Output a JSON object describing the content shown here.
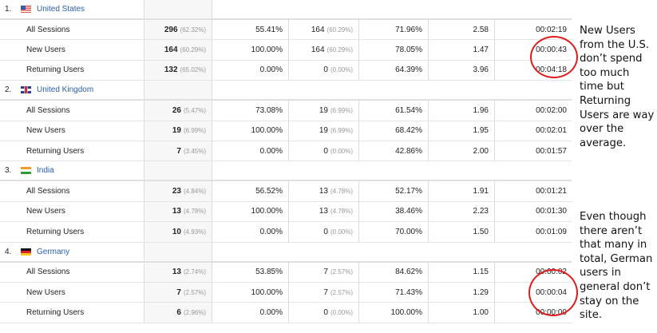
{
  "groups": [
    {
      "rank": "1.",
      "flag": "flag-us",
      "country": "United States",
      "rows": [
        {
          "label": "All Sessions",
          "sessions": "296",
          "sessions_pct": "(62.32%)",
          "new_sessions_pct": "55.41%",
          "new_users": "164",
          "new_users_pct": "(60.29%)",
          "bounce_rate": "71.96%",
          "pages_per_session": "2.58",
          "avg_duration": "00:02:19"
        },
        {
          "label": "New Users",
          "sessions": "164",
          "sessions_pct": "(60.29%)",
          "new_sessions_pct": "100.00%",
          "new_users": "164",
          "new_users_pct": "(60.29%)",
          "bounce_rate": "78.05%",
          "pages_per_session": "1.47",
          "avg_duration": "00:00:43"
        },
        {
          "label": "Returning Users",
          "sessions": "132",
          "sessions_pct": "(65.02%)",
          "new_sessions_pct": "0.00%",
          "new_users": "0",
          "new_users_pct": "(0.00%)",
          "bounce_rate": "64.39%",
          "pages_per_session": "3.96",
          "avg_duration": "00:04:18"
        }
      ]
    },
    {
      "rank": "2.",
      "flag": "flag-uk",
      "country": "United Kingdom",
      "rows": [
        {
          "label": "All Sessions",
          "sessions": "26",
          "sessions_pct": "(5.47%)",
          "new_sessions_pct": "73.08%",
          "new_users": "19",
          "new_users_pct": "(6.99%)",
          "bounce_rate": "61.54%",
          "pages_per_session": "1.96",
          "avg_duration": "00:02:00"
        },
        {
          "label": "New Users",
          "sessions": "19",
          "sessions_pct": "(6.99%)",
          "new_sessions_pct": "100.00%",
          "new_users": "19",
          "new_users_pct": "(6.99%)",
          "bounce_rate": "68.42%",
          "pages_per_session": "1.95",
          "avg_duration": "00:02:01"
        },
        {
          "label": "Returning Users",
          "sessions": "7",
          "sessions_pct": "(3.45%)",
          "new_sessions_pct": "0.00%",
          "new_users": "0",
          "new_users_pct": "(0.00%)",
          "bounce_rate": "42.86%",
          "pages_per_session": "2.00",
          "avg_duration": "00:01:57"
        }
      ]
    },
    {
      "rank": "3.",
      "flag": "flag-in",
      "country": "India",
      "rows": [
        {
          "label": "All Sessions",
          "sessions": "23",
          "sessions_pct": "(4.84%)",
          "new_sessions_pct": "56.52%",
          "new_users": "13",
          "new_users_pct": "(4.78%)",
          "bounce_rate": "52.17%",
          "pages_per_session": "1.91",
          "avg_duration": "00:01:21"
        },
        {
          "label": "New Users",
          "sessions": "13",
          "sessions_pct": "(4.78%)",
          "new_sessions_pct": "100.00%",
          "new_users": "13",
          "new_users_pct": "(4.78%)",
          "bounce_rate": "38.46%",
          "pages_per_session": "2.23",
          "avg_duration": "00:01:30"
        },
        {
          "label": "Returning Users",
          "sessions": "10",
          "sessions_pct": "(4.93%)",
          "new_sessions_pct": "0.00%",
          "new_users": "0",
          "new_users_pct": "(0.00%)",
          "bounce_rate": "70.00%",
          "pages_per_session": "1.50",
          "avg_duration": "00:01:09"
        }
      ]
    },
    {
      "rank": "4.",
      "flag": "flag-de",
      "country": "Germany",
      "rows": [
        {
          "label": "All Sessions",
          "sessions": "13",
          "sessions_pct": "(2.74%)",
          "new_sessions_pct": "53.85%",
          "new_users": "7",
          "new_users_pct": "(2.57%)",
          "bounce_rate": "84.62%",
          "pages_per_session": "1.15",
          "avg_duration": "00:00:02"
        },
        {
          "label": "New Users",
          "sessions": "7",
          "sessions_pct": "(2.57%)",
          "new_sessions_pct": "100.00%",
          "new_users": "7",
          "new_users_pct": "(2.57%)",
          "bounce_rate": "71.43%",
          "pages_per_session": "1.29",
          "avg_duration": "00:00:04"
        },
        {
          "label": "Returning Users",
          "sessions": "6",
          "sessions_pct": "(2.96%)",
          "new_sessions_pct": "0.00%",
          "new_users": "0",
          "new_users_pct": "(0.00%)",
          "bounce_rate": "100.00%",
          "pages_per_session": "1.00",
          "avg_duration": "00:00:00"
        }
      ]
    }
  ],
  "annotations": {
    "us": [
      "New Users",
      "from the U.S.",
      "don’t spend",
      "too much",
      "time but",
      "Returning",
      "Users are way",
      "over the",
      "average."
    ],
    "germany": [
      "Even though",
      "there aren’t",
      "that many in",
      "total, German",
      "users in",
      "general don’t",
      "stay on the",
      "site."
    ],
    "circle_color": "#e01b1b"
  }
}
